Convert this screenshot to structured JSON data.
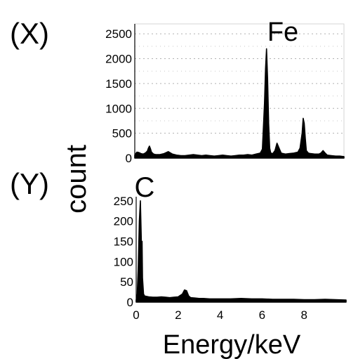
{
  "chart_data": [
    {
      "type": "line",
      "panel_label": "(X)",
      "element_label": "Fe",
      "xlim": [
        0,
        10
      ],
      "ylim": [
        0,
        2700
      ],
      "yticks": [
        0,
        500,
        1000,
        1500,
        2000,
        2500
      ],
      "ytick_labels": [
        "0",
        "500",
        "1000",
        "1500",
        "2000",
        "2500"
      ],
      "grid": true,
      "series": [
        {
          "x": [
            0.0,
            0.1,
            0.2,
            0.3,
            0.4,
            0.5,
            0.6,
            0.65,
            0.7,
            0.75,
            0.8,
            0.9,
            1.0,
            1.2,
            1.4,
            1.6,
            1.8,
            2.0,
            2.2,
            2.4,
            2.6,
            2.8,
            3.0,
            3.2,
            3.4,
            3.6,
            3.8,
            4.0,
            4.2,
            4.4,
            4.6,
            4.8,
            5.0,
            5.2,
            5.4,
            5.6,
            5.8,
            6.0,
            6.1,
            6.2,
            6.25,
            6.3,
            6.35,
            6.4,
            6.45,
            6.5,
            6.6,
            6.7,
            6.8,
            6.9,
            7.0,
            7.1,
            7.2,
            7.4,
            7.6,
            7.8,
            7.9,
            8.0,
            8.05,
            8.1,
            8.15,
            8.2,
            8.3,
            8.4,
            8.6,
            8.8,
            8.9,
            9.0,
            9.1,
            9.2,
            9.4,
            9.6,
            9.8,
            10.0
          ],
          "y": [
            60,
            120,
            110,
            90,
            80,
            100,
            140,
            200,
            240,
            190,
            120,
            80,
            70,
            70,
            90,
            130,
            80,
            60,
            50,
            50,
            60,
            70,
            60,
            50,
            60,
            50,
            40,
            50,
            60,
            50,
            40,
            50,
            60,
            60,
            70,
            60,
            80,
            100,
            180,
            1100,
            1800,
            2200,
            1600,
            700,
            200,
            100,
            90,
            150,
            300,
            200,
            100,
            90,
            80,
            90,
            100,
            120,
            200,
            500,
            800,
            700,
            400,
            150,
            100,
            90,
            80,
            80,
            100,
            150,
            100,
            60,
            50,
            40,
            40,
            30
          ]
        }
      ]
    },
    {
      "type": "line",
      "panel_label": "(Y)",
      "element_label": "C",
      "xlim": [
        0,
        10
      ],
      "ylim": [
        0,
        260
      ],
      "yticks": [
        0,
        50,
        100,
        150,
        200,
        250
      ],
      "ytick_labels": [
        "0",
        "50",
        "100",
        "150",
        "200",
        "250"
      ],
      "xticks": [
        0,
        2,
        4,
        6,
        8
      ],
      "xtick_labels": [
        "0",
        "2",
        "4",
        "6",
        "8"
      ],
      "grid": false,
      "series": [
        {
          "x": [
            0.0,
            0.05,
            0.1,
            0.15,
            0.2,
            0.25,
            0.28,
            0.3,
            0.35,
            0.4,
            0.5,
            0.6,
            0.8,
            1.0,
            1.2,
            1.4,
            1.6,
            1.8,
            2.0,
            2.2,
            2.3,
            2.4,
            2.5,
            2.6,
            2.8,
            3.0,
            3.2,
            3.5,
            4.0,
            4.5,
            5.0,
            5.5,
            6.0,
            6.5,
            7.0,
            7.5,
            8.0,
            8.5,
            9.0,
            9.5,
            10.0
          ],
          "y": [
            5,
            20,
            90,
            200,
            250,
            140,
            150,
            60,
            20,
            15,
            14,
            13,
            12,
            12,
            13,
            12,
            11,
            12,
            13,
            20,
            30,
            28,
            15,
            11,
            10,
            9,
            9,
            8,
            8,
            8,
            9,
            8,
            8,
            7,
            7,
            7,
            6,
            6,
            7,
            6,
            5
          ]
        }
      ]
    }
  ],
  "shared": {
    "y_axis_label": "count",
    "x_axis_label": "Energy/keV"
  }
}
